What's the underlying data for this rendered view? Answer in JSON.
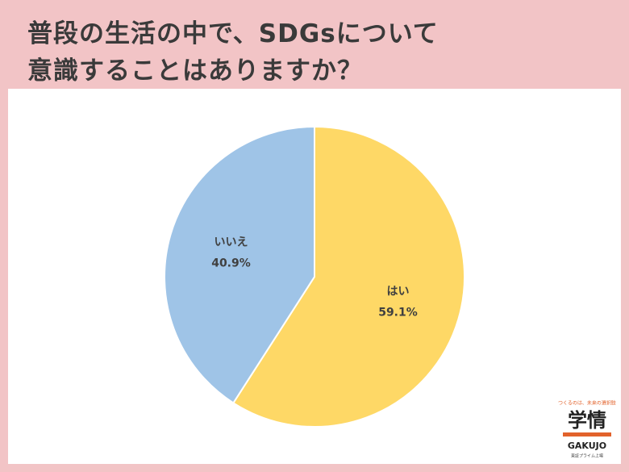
{
  "chart_data": {
    "type": "pie",
    "title": [
      "普段の生活の中で、SDGsについて",
      "意識することはありますか？"
    ],
    "categories": [
      "はい",
      "いいえ"
    ],
    "values": [
      59.1,
      40.9
    ],
    "value_labels": [
      "59.1%",
      "40.9%"
    ],
    "colors": [
      "#fed866",
      "#9fc4e7"
    ]
  },
  "logo": {
    "tagline": "つくるのは、未来の選択肢",
    "name": "学情",
    "roman": "GAKUJO",
    "note": "東証プライム上場"
  }
}
